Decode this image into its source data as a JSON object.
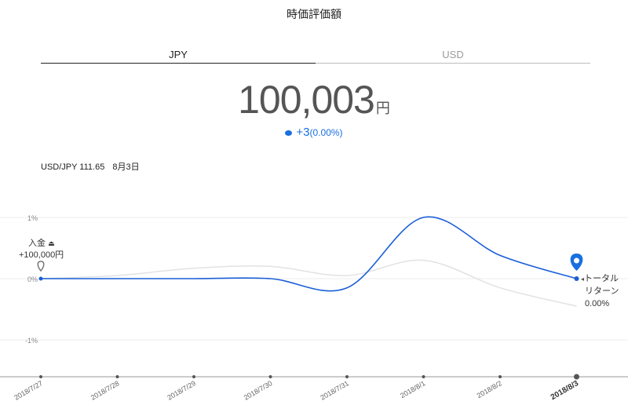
{
  "title": "時価評価額",
  "tabs": [
    {
      "label": "JPY",
      "active": true
    },
    {
      "label": "USD",
      "active": false
    }
  ],
  "valuation": {
    "amount": "100,003",
    "unit": "円"
  },
  "change": {
    "value": "+3",
    "percent": "(0.00%)",
    "color": "#1a6fe0"
  },
  "fx": {
    "pair": "USD/JPY 111.65",
    "date": "8月3日"
  },
  "deposit": {
    "label": "入金",
    "amount": "+100,000円"
  },
  "total_return": {
    "line1": "トータル",
    "line2": "リターン",
    "value": "0.00%"
  },
  "colors": {
    "primary": "#1a5fd6",
    "benchmark": "#e2e2e6",
    "accent": "#1a6fe0"
  },
  "chart_data": {
    "type": "line",
    "categories": [
      "2018/7/27",
      "2018/7/28",
      "2018/7/29",
      "2018/7/30",
      "2018/7/31",
      "2018/8/1",
      "2018/8/2",
      "2018/8/3"
    ],
    "y_tick_labels": [
      "1%",
      "0%",
      "-1%"
    ],
    "y_ticks": [
      1,
      0,
      -1
    ],
    "ylim": [
      -1.6,
      1.3
    ],
    "grid": true,
    "series": [
      {
        "key": "portfolio",
        "values": [
          0,
          0,
          0,
          0,
          -0.15,
          1.0,
          0.38,
          0.0
        ],
        "color": "#1a5fd6"
      },
      {
        "key": "benchmark",
        "values": [
          0,
          0.05,
          0.17,
          0.2,
          0.05,
          0.3,
          -0.15,
          -0.45
        ],
        "color": "#e2e2e6"
      }
    ]
  }
}
